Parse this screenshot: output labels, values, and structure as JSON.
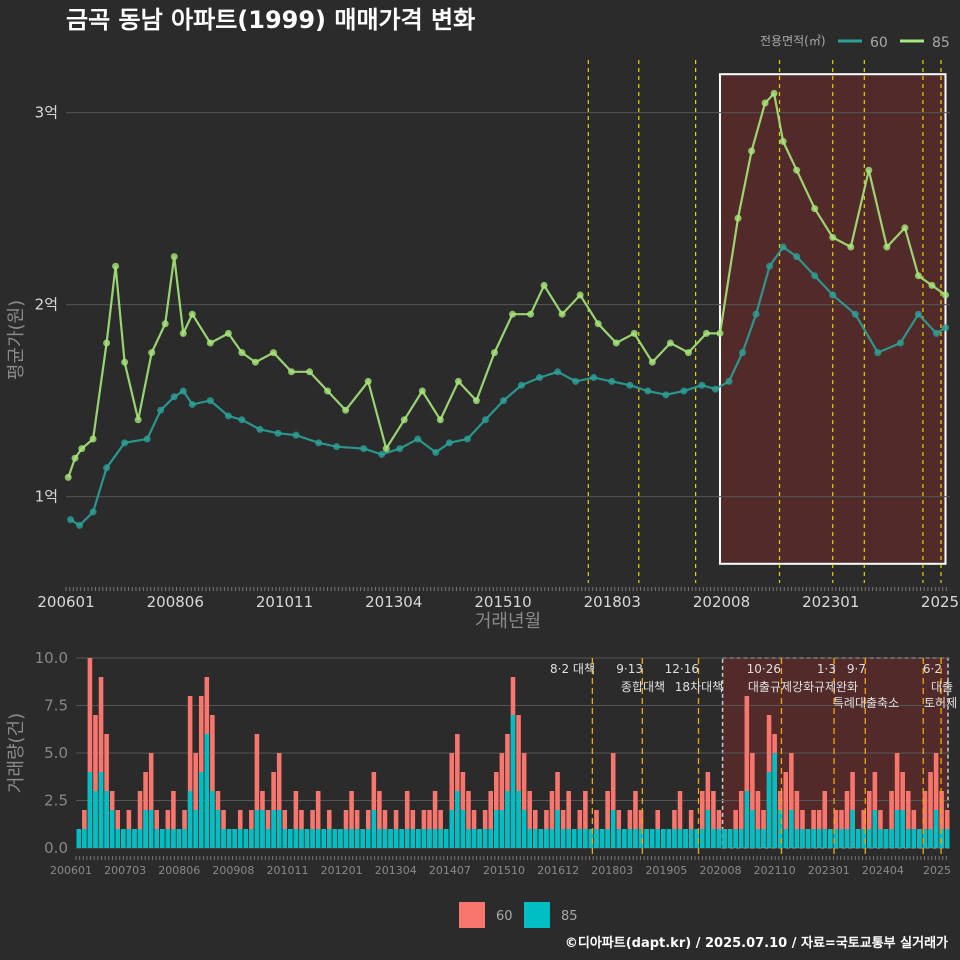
{
  "header": {
    "title": "금곡 동남 아파트(1999) 매매가격 변화",
    "caption": "©디아파트(dapt.kr) / 2025.07.10 / 자료=국토교통부 실거래가"
  },
  "colors": {
    "background": "#2b2b2b",
    "series_60_price": "#2aa198",
    "series_85_price": "#a6e67a",
    "vol_60": "#f8766d",
    "vol_85": "#00bfc4",
    "policy_line": "#e5d400",
    "highlight_fill": "#5a2a2a",
    "grid": "#555555"
  },
  "chart_data": [
    {
      "id": "price",
      "type": "line",
      "title": "금곡 동남 아파트(1999) 매매가격 변화",
      "xlabel": "거래년월",
      "ylabel": "평균가(원)",
      "x_tick_labels": [
        "200601",
        "200806",
        "201011",
        "201304",
        "201510",
        "201803",
        "202008",
        "202301",
        "2025"
      ],
      "y_tick_labels": [
        "1억",
        "2억",
        "3억"
      ],
      "y_ticks": [
        10000,
        20000,
        30000
      ],
      "ylim": [
        5500,
        33000
      ],
      "xlim": [
        2006.0,
        2025.6
      ],
      "legend": {
        "title": "전용면적(㎡)",
        "entries": [
          "60",
          "85"
        ],
        "position": "top-right"
      },
      "highlight": {
        "x_start": 2020.5,
        "x_end": 2025.5,
        "y_start": 6500,
        "y_end": 32000
      },
      "policy_lines": [
        2017.58,
        2018.7,
        2019.96,
        2021.82,
        2023.0,
        2023.7,
        2025.0,
        2025.4
      ],
      "series": [
        {
          "name": "60",
          "x": [
            2006.1,
            2006.3,
            2006.6,
            2006.9,
            2007.3,
            2007.8,
            2008.1,
            2008.4,
            2008.6,
            2008.8,
            2009.2,
            2009.6,
            2009.9,
            2010.3,
            2010.7,
            2011.1,
            2011.6,
            2012.0,
            2012.6,
            2013.0,
            2013.4,
            2013.8,
            2014.2,
            2014.5,
            2014.9,
            2015.3,
            2015.7,
            2016.1,
            2016.5,
            2016.9,
            2017.3,
            2017.7,
            2018.1,
            2018.5,
            2018.9,
            2019.3,
            2019.7,
            2020.1,
            2020.4,
            2020.7,
            2021.0,
            2021.3,
            2021.6,
            2021.9,
            2022.2,
            2022.6,
            2023.0,
            2023.5,
            2024.0,
            2024.5,
            2024.9,
            2025.3,
            2025.5
          ],
          "y": [
            8800,
            8500,
            9200,
            11500,
            12800,
            13000,
            14500,
            15200,
            15500,
            14800,
            15000,
            14200,
            14000,
            13500,
            13300,
            13200,
            12800,
            12600,
            12500,
            12200,
            12500,
            13000,
            12300,
            12800,
            13000,
            14000,
            15000,
            15800,
            16200,
            16500,
            16000,
            16200,
            16000,
            15800,
            15500,
            15300,
            15500,
            15800,
            15600,
            16000,
            17500,
            19500,
            22000,
            23000,
            22500,
            21500,
            20500,
            19500,
            17500,
            18000,
            19500,
            18500,
            18800
          ]
        },
        {
          "name": "85",
          "x": [
            2006.05,
            2006.2,
            2006.35,
            2006.6,
            2006.9,
            2007.1,
            2007.3,
            2007.6,
            2007.9,
            2008.2,
            2008.4,
            2008.6,
            2008.8,
            2009.2,
            2009.6,
            2009.9,
            2010.2,
            2010.6,
            2011.0,
            2011.4,
            2011.8,
            2012.2,
            2012.7,
            2013.1,
            2013.5,
            2013.9,
            2014.3,
            2014.7,
            2015.1,
            2015.5,
            2015.9,
            2016.3,
            2016.6,
            2017.0,
            2017.4,
            2017.8,
            2018.2,
            2018.6,
            2019.0,
            2019.4,
            2019.8,
            2020.2,
            2020.5,
            2020.9,
            2021.2,
            2021.5,
            2021.7,
            2021.9,
            2022.2,
            2022.6,
            2023.0,
            2023.4,
            2023.8,
            2024.2,
            2024.6,
            2024.9,
            2025.2,
            2025.5
          ],
          "y": [
            11000,
            12000,
            12500,
            13000,
            18000,
            22000,
            17000,
            14000,
            17500,
            19000,
            22500,
            18500,
            19500,
            18000,
            18500,
            17500,
            17000,
            17500,
            16500,
            16500,
            15500,
            14500,
            16000,
            12500,
            14000,
            15500,
            14000,
            16000,
            15000,
            17500,
            19500,
            19500,
            21000,
            19500,
            20500,
            19000,
            18000,
            18500,
            17000,
            18000,
            17500,
            18500,
            18500,
            24500,
            28000,
            30500,
            31000,
            28500,
            27000,
            25000,
            23500,
            23000,
            27000,
            23000,
            24000,
            21500,
            21000,
            20500
          ]
        }
      ]
    },
    {
      "id": "volume",
      "type": "bar",
      "xlabel": "",
      "ylabel": "거래량(건)",
      "x_tick_labels": [
        "200601",
        "200703",
        "200806",
        "200908",
        "201011",
        "201201",
        "201304",
        "201407",
        "201510",
        "201612",
        "201803",
        "201905",
        "202008",
        "202110",
        "202301",
        "202404",
        "2025"
      ],
      "y_tick_labels": [
        "0.0",
        "2.5",
        "5.0",
        "7.5",
        "10.0"
      ],
      "y_ticks": [
        0,
        2.5,
        5,
        7.5,
        10
      ],
      "ylim": [
        0,
        10
      ],
      "legend": {
        "entries": [
          "60",
          "85"
        ],
        "position": "bottom"
      },
      "annotations": [
        {
          "line1": "8·2 대책",
          "line2": ""
        },
        {
          "line1": "9·13",
          "line2": "종합대책"
        },
        {
          "line1": "12·16",
          "line2": "18차대책"
        },
        {
          "line1": "10·26",
          "line2": "대출규제강화"
        },
        {
          "line1": "1·3",
          "line2": "규제완화"
        },
        {
          "line1": "9·7",
          "line2": "특례대출축소"
        },
        {
          "line1": "",
          "line2": "토허제 해"
        },
        {
          "line1": "6·2",
          "line2": "대출"
        }
      ],
      "bars_60": [
        1,
        2,
        10,
        7,
        9,
        6,
        3,
        2,
        1,
        2,
        1,
        3,
        4,
        5,
        2,
        1,
        2,
        3,
        1,
        2,
        8,
        5,
        8,
        9,
        7,
        3,
        2,
        1,
        1,
        2,
        1,
        2,
        6,
        3,
        2,
        4,
        5,
        2,
        1,
        3,
        2,
        1,
        2,
        3,
        1,
        2,
        1,
        1,
        2,
        3,
        2,
        1,
        2,
        4,
        3,
        2,
        1,
        2,
        1,
        3,
        2,
        1,
        2,
        2,
        3,
        2,
        1,
        5,
        6,
        4,
        3,
        2,
        1,
        2,
        3,
        4,
        5,
        6,
        9,
        7,
        5,
        3,
        2,
        1,
        2,
        3,
        4,
        2,
        3,
        1,
        2,
        3,
        1,
        2,
        1,
        3,
        5,
        2,
        1,
        2,
        3,
        2,
        1,
        1,
        2,
        1,
        1,
        2,
        3,
        1,
        2,
        1,
        3,
        4,
        3,
        2,
        1,
        1,
        2,
        3,
        8,
        5,
        3,
        2,
        7,
        6,
        3,
        4,
        5,
        3,
        2,
        1,
        2,
        2,
        3,
        1,
        2,
        2,
        3,
        4,
        1,
        2,
        3,
        4,
        2,
        1,
        3,
        5,
        4,
        3,
        2,
        1,
        3,
        4,
        5,
        3,
        2
      ],
      "bars_85": [
        1,
        1,
        4,
        3,
        4,
        3,
        2,
        1,
        1,
        1,
        1,
        1,
        2,
        2,
        1,
        1,
        1,
        1,
        1,
        1,
        3,
        2,
        4,
        6,
        3,
        2,
        1,
        1,
        1,
        1,
        1,
        1,
        2,
        2,
        1,
        2,
        2,
        1,
        1,
        1,
        1,
        1,
        1,
        1,
        1,
        1,
        1,
        1,
        1,
        1,
        1,
        1,
        1,
        2,
        1,
        1,
        1,
        1,
        1,
        1,
        1,
        1,
        1,
        1,
        1,
        1,
        1,
        2,
        3,
        2,
        1,
        1,
        1,
        1,
        1,
        2,
        2,
        3,
        7,
        3,
        2,
        1,
        1,
        1,
        1,
        1,
        2,
        1,
        1,
        1,
        1,
        1,
        1,
        1,
        1,
        1,
        2,
        1,
        1,
        1,
        1,
        1,
        1,
        1,
        1,
        1,
        1,
        1,
        1,
        1,
        1,
        1,
        1,
        2,
        1,
        1,
        1,
        1,
        1,
        1,
        3,
        2,
        1,
        1,
        4,
        5,
        2,
        1,
        2,
        1,
        1,
        1,
        1,
        1,
        1,
        1,
        1,
        1,
        1,
        2,
        1,
        1,
        1,
        2,
        1,
        1,
        1,
        2,
        2,
        1,
        1,
        1,
        1,
        1,
        2,
        1,
        1
      ]
    }
  ]
}
